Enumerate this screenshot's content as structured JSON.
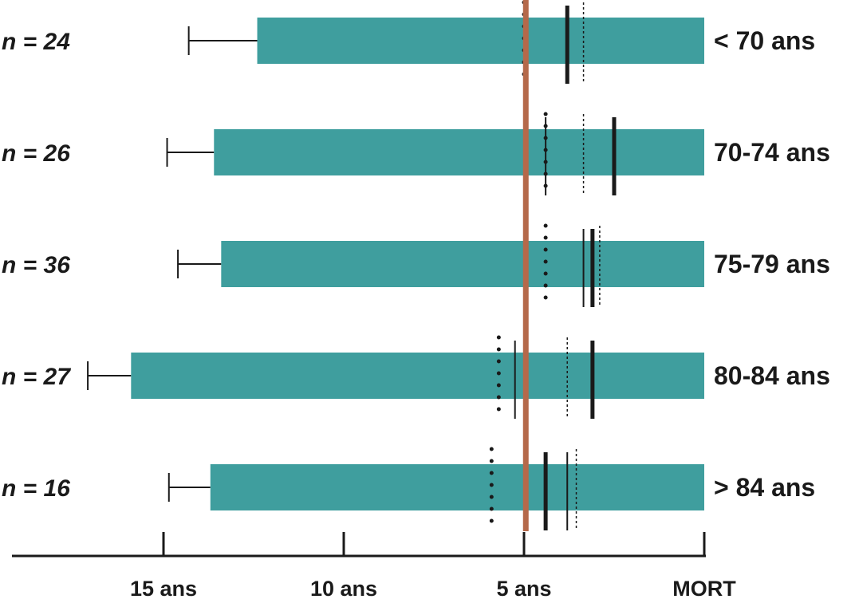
{
  "chart_data": {
    "type": "bar",
    "orientation": "horizontal",
    "x_direction": "reversed",
    "xlim": [
      17.5,
      0
    ],
    "x_ticks": [
      {
        "value": 15,
        "label": "15 ans"
      },
      {
        "value": 10,
        "label": "10 ans"
      },
      {
        "value": 5,
        "label": "5 ans"
      },
      {
        "value": 0,
        "label": "MORT"
      }
    ],
    "reference_line": {
      "value": 4.95,
      "color": "#b5694a"
    },
    "rows": [
      {
        "group": "< 70 ans",
        "n_label": "n = 24",
        "bar_start": 12.4,
        "whisker": 14.3,
        "dots": 5.0,
        "thin": 5.0,
        "thick": 3.8,
        "dotted": 3.35
      },
      {
        "group": "70-74 ans",
        "n_label": "n = 26",
        "bar_start": 13.6,
        "whisker": 14.9,
        "dots": 4.4,
        "thin": 4.4,
        "thick": 2.5,
        "dotted": 3.35
      },
      {
        "group": "75-79 ans",
        "n_label": "n = 36",
        "bar_start": 13.4,
        "whisker": 14.6,
        "dots": 4.4,
        "thin": 3.35,
        "thick": 3.1,
        "dotted": 2.9
      },
      {
        "group": "80-84 ans",
        "n_label": "n = 27",
        "bar_start": 15.9,
        "whisker": 17.1,
        "dots": 5.7,
        "thin": 5.25,
        "thick": 3.1,
        "dotted": 3.8
      },
      {
        "group": "> 84 ans",
        "n_label": "n = 16",
        "bar_start": 13.7,
        "whisker": 14.85,
        "dots": 5.9,
        "thin": 3.8,
        "thick": 4.4,
        "dotted": 3.55
      }
    ],
    "bar_color": "#3f9e9e"
  }
}
